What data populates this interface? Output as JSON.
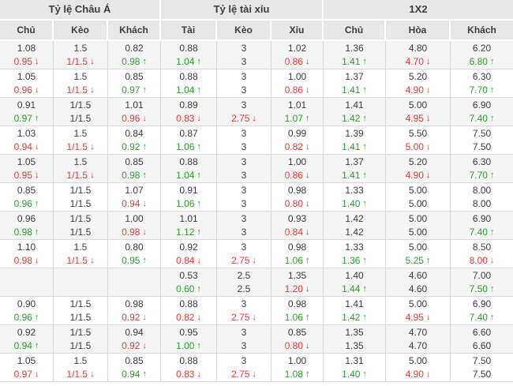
{
  "colors": {
    "up": "#2e9e2e",
    "down": "#e03c3c",
    "header_bg": "#e7e7e7",
    "row_alt_bg": "#f4f4f4",
    "border": "#d9d9d9",
    "text": "#3d3d3d"
  },
  "table": {
    "groups": [
      {
        "label": "Tỷ lệ Châu Á",
        "cols": [
          "Chủ",
          "Kèo",
          "Khách"
        ]
      },
      {
        "label": "Tỷ lệ tài xỉu",
        "cols": [
          "Tài",
          "Kèo",
          "Xỉu"
        ]
      },
      {
        "label": "1X2",
        "cols": [
          "Chủ",
          "Hòa",
          "Khách"
        ]
      }
    ],
    "rows": [
      {
        "cells": [
          {
            "top": "1.08",
            "bot": "0.95",
            "dir": "down"
          },
          {
            "top": "1.5",
            "bot": "1/1.5",
            "dir": "down"
          },
          {
            "top": "0.82",
            "bot": "0.98",
            "dir": "up"
          },
          {
            "top": "0.88",
            "bot": "1.04",
            "dir": "up"
          },
          {
            "top": "3",
            "bot": "3",
            "dir": "none"
          },
          {
            "top": "1.02",
            "bot": "0.86",
            "dir": "down"
          },
          {
            "top": "1.36",
            "bot": "1.41",
            "dir": "up"
          },
          {
            "top": "4.80",
            "bot": "4.70",
            "dir": "down"
          },
          {
            "top": "6.20",
            "bot": "6.80",
            "dir": "up"
          }
        ]
      },
      {
        "cells": [
          {
            "top": "1.05",
            "bot": "0.96",
            "dir": "down"
          },
          {
            "top": "1.5",
            "bot": "1/1.5",
            "dir": "down"
          },
          {
            "top": "0.85",
            "bot": "0.97",
            "dir": "up"
          },
          {
            "top": "0.88",
            "bot": "1.04",
            "dir": "up"
          },
          {
            "top": "3",
            "bot": "3",
            "dir": "none"
          },
          {
            "top": "1.00",
            "bot": "0.86",
            "dir": "down"
          },
          {
            "top": "1.37",
            "bot": "1.41",
            "dir": "up"
          },
          {
            "top": "5.20",
            "bot": "4.90",
            "dir": "down"
          },
          {
            "top": "6.30",
            "bot": "7.70",
            "dir": "up"
          }
        ]
      },
      {
        "cells": [
          {
            "top": "0.91",
            "bot": "0.97",
            "dir": "up"
          },
          {
            "top": "1/1.5",
            "bot": "1/1.5",
            "dir": "none"
          },
          {
            "top": "1.01",
            "bot": "0.96",
            "dir": "down"
          },
          {
            "top": "0.89",
            "bot": "0.83",
            "dir": "down"
          },
          {
            "top": "3",
            "bot": "2.75",
            "dir": "down"
          },
          {
            "top": "1.01",
            "bot": "1.07",
            "dir": "up"
          },
          {
            "top": "1.41",
            "bot": "1.42",
            "dir": "up"
          },
          {
            "top": "5.00",
            "bot": "4.95",
            "dir": "down"
          },
          {
            "top": "6.90",
            "bot": "7.40",
            "dir": "up"
          }
        ]
      },
      {
        "cells": [
          {
            "top": "1.03",
            "bot": "0.94",
            "dir": "down"
          },
          {
            "top": "1.5",
            "bot": "1/1.5",
            "dir": "down"
          },
          {
            "top": "0.84",
            "bot": "0.92",
            "dir": "up"
          },
          {
            "top": "0.87",
            "bot": "1.06",
            "dir": "up"
          },
          {
            "top": "3",
            "bot": "3",
            "dir": "none"
          },
          {
            "top": "0.99",
            "bot": "0.82",
            "dir": "down"
          },
          {
            "top": "1.39",
            "bot": "1.41",
            "dir": "up"
          },
          {
            "top": "5.50",
            "bot": "5.00",
            "dir": "down"
          },
          {
            "top": "7.50",
            "bot": "7.50",
            "dir": "none"
          }
        ]
      },
      {
        "cells": [
          {
            "top": "1.05",
            "bot": "0.95",
            "dir": "down"
          },
          {
            "top": "1.5",
            "bot": "1/1.5",
            "dir": "down"
          },
          {
            "top": "0.85",
            "bot": "0.98",
            "dir": "up"
          },
          {
            "top": "0.88",
            "bot": "1.04",
            "dir": "up"
          },
          {
            "top": "3",
            "bot": "3",
            "dir": "none"
          },
          {
            "top": "1.00",
            "bot": "0.86",
            "dir": "down"
          },
          {
            "top": "1.37",
            "bot": "1.41",
            "dir": "up"
          },
          {
            "top": "5.20",
            "bot": "4.90",
            "dir": "down"
          },
          {
            "top": "6.30",
            "bot": "7.70",
            "dir": "up"
          }
        ]
      },
      {
        "cells": [
          {
            "top": "0.85",
            "bot": "0.96",
            "dir": "up"
          },
          {
            "top": "1/1.5",
            "bot": "1/1.5",
            "dir": "none"
          },
          {
            "top": "1.07",
            "bot": "0.94",
            "dir": "down"
          },
          {
            "top": "0.91",
            "bot": "1.06",
            "dir": "up"
          },
          {
            "top": "3",
            "bot": "3",
            "dir": "none"
          },
          {
            "top": "0.98",
            "bot": "0.80",
            "dir": "down"
          },
          {
            "top": "1.33",
            "bot": "1.40",
            "dir": "up"
          },
          {
            "top": "5.00",
            "bot": "5.00",
            "dir": "none"
          },
          {
            "top": "8.00",
            "bot": "8.00",
            "dir": "none"
          }
        ]
      },
      {
        "cells": [
          {
            "top": "0.96",
            "bot": "0.98",
            "dir": "up"
          },
          {
            "top": "1/1.5",
            "bot": "1/1.5",
            "dir": "none"
          },
          {
            "top": "1.00",
            "bot": "0.98",
            "dir": "down"
          },
          {
            "top": "1.01",
            "bot": "1.12",
            "dir": "up"
          },
          {
            "top": "3",
            "bot": "3",
            "dir": "none"
          },
          {
            "top": "0.93",
            "bot": "0.84",
            "dir": "down"
          },
          {
            "top": "1.42",
            "bot": "1.42",
            "dir": "none"
          },
          {
            "top": "5.00",
            "bot": "5.00",
            "dir": "none"
          },
          {
            "top": "6.90",
            "bot": "7.40",
            "dir": "up"
          }
        ]
      },
      {
        "cells": [
          {
            "top": "1.10",
            "bot": "0.98",
            "dir": "down"
          },
          {
            "top": "1.5",
            "bot": "1/1.5",
            "dir": "down"
          },
          {
            "top": "0.80",
            "bot": "0.95",
            "dir": "up"
          },
          {
            "top": "0.92",
            "bot": "0.84",
            "dir": "down"
          },
          {
            "top": "3",
            "bot": "2.75",
            "dir": "down"
          },
          {
            "top": "0.98",
            "bot": "1.06",
            "dir": "up"
          },
          {
            "top": "1.33",
            "bot": "1.36",
            "dir": "up"
          },
          {
            "top": "5.00",
            "bot": "5.25",
            "dir": "up"
          },
          {
            "top": "8.50",
            "bot": "8.00",
            "dir": "down"
          }
        ]
      },
      {
        "cells": [
          {
            "top": "",
            "bot": "",
            "dir": "none"
          },
          {
            "top": "",
            "bot": "",
            "dir": "none"
          },
          {
            "top": "",
            "bot": "",
            "dir": "none"
          },
          {
            "top": "0.53",
            "bot": "0.60",
            "dir": "up"
          },
          {
            "top": "2.5",
            "bot": "2.5",
            "dir": "none"
          },
          {
            "top": "1.35",
            "bot": "1.20",
            "dir": "down"
          },
          {
            "top": "1.40",
            "bot": "1.44",
            "dir": "up"
          },
          {
            "top": "4.60",
            "bot": "4.60",
            "dir": "none"
          },
          {
            "top": "7.00",
            "bot": "7.50",
            "dir": "up"
          }
        ]
      },
      {
        "cells": [
          {
            "top": "0.90",
            "bot": "0.96",
            "dir": "up"
          },
          {
            "top": "1/1.5",
            "bot": "1/1.5",
            "dir": "none"
          },
          {
            "top": "0.98",
            "bot": "0.92",
            "dir": "down"
          },
          {
            "top": "0.88",
            "bot": "0.82",
            "dir": "down"
          },
          {
            "top": "3",
            "bot": "2.75",
            "dir": "down"
          },
          {
            "top": "0.98",
            "bot": "1.06",
            "dir": "up"
          },
          {
            "top": "1.41",
            "bot": "1.42",
            "dir": "up"
          },
          {
            "top": "5.00",
            "bot": "4.95",
            "dir": "down"
          },
          {
            "top": "6.90",
            "bot": "7.40",
            "dir": "up"
          }
        ]
      },
      {
        "cells": [
          {
            "top": "0.92",
            "bot": "0.94",
            "dir": "up"
          },
          {
            "top": "1/1.5",
            "bot": "1/1.5",
            "dir": "none"
          },
          {
            "top": "0.94",
            "bot": "0.92",
            "dir": "down"
          },
          {
            "top": "0.95",
            "bot": "1.00",
            "dir": "up"
          },
          {
            "top": "3",
            "bot": "3",
            "dir": "none"
          },
          {
            "top": "0.85",
            "bot": "0.80",
            "dir": "down"
          },
          {
            "top": "1.35",
            "bot": "1.35",
            "dir": "none"
          },
          {
            "top": "4.70",
            "bot": "4.70",
            "dir": "none"
          },
          {
            "top": "6.60",
            "bot": "6.60",
            "dir": "none"
          }
        ]
      },
      {
        "cells": [
          {
            "top": "1.05",
            "bot": "0.97",
            "dir": "down"
          },
          {
            "top": "1.5",
            "bot": "1/1.5",
            "dir": "down"
          },
          {
            "top": "0.85",
            "bot": "0.94",
            "dir": "up"
          },
          {
            "top": "0.88",
            "bot": "0.83",
            "dir": "down"
          },
          {
            "top": "3",
            "bot": "2.75",
            "dir": "down"
          },
          {
            "top": "1.00",
            "bot": "1.08",
            "dir": "up"
          },
          {
            "top": "1.31",
            "bot": "1.40",
            "dir": "up"
          },
          {
            "top": "5.00",
            "bot": "4.90",
            "dir": "down"
          },
          {
            "top": "7.50",
            "bot": "7.50",
            "dir": "none"
          }
        ]
      }
    ]
  }
}
